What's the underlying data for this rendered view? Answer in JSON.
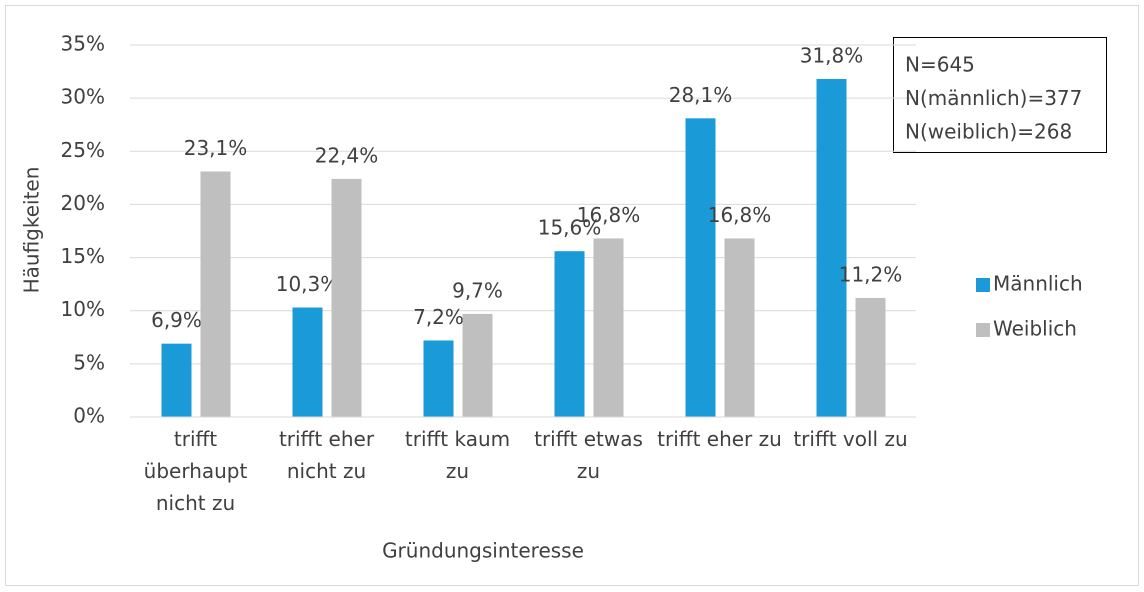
{
  "chart_data": {
    "type": "bar",
    "x_label": "Gründungsinteresse",
    "y_label": "Häufigkeiten",
    "categories": [
      "trifft überhaupt nicht zu",
      "trifft eher nicht zu",
      "trifft kaum zu",
      "trifft etwas zu",
      "trifft eher zu",
      "trifft voll zu"
    ],
    "series": [
      {
        "name": "Männlich",
        "color": "#1a9bd7",
        "values": [
          6.9,
          10.3,
          7.2,
          15.6,
          28.1,
          31.8
        ],
        "value_labels": [
          "6,9%",
          "10,3%",
          "7,2%",
          "15,6%",
          "28,1%",
          "31,8%"
        ]
      },
      {
        "name": "Weiblich",
        "color": "#bfbfbf",
        "values": [
          23.1,
          22.4,
          9.7,
          16.8,
          16.8,
          11.2
        ],
        "value_labels": [
          "23,1%",
          "22,4%",
          "9,7%",
          "16,8%",
          "16,8%",
          "11,2%"
        ]
      }
    ],
    "ylim": [
      0,
      35
    ],
    "yticks": [
      {
        "value": 0,
        "label": "0%"
      },
      {
        "value": 5,
        "label": "5%"
      },
      {
        "value": 10,
        "label": "10%"
      },
      {
        "value": 15,
        "label": "15%"
      },
      {
        "value": 20,
        "label": "20%"
      },
      {
        "value": 25,
        "label": "25%"
      },
      {
        "value": 30,
        "label": "30%"
      },
      {
        "value": 35,
        "label": "35%"
      }
    ],
    "grid": true,
    "legend": "right",
    "annotations": [
      "N=645",
      "N(männlich)=377",
      "N(weiblich)=268"
    ]
  }
}
